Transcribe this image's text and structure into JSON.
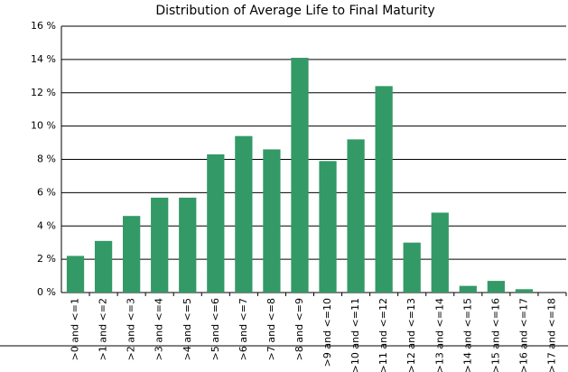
{
  "chart_data": {
    "type": "bar",
    "title": "Distribution of Average Life to Final Maturity",
    "categories": [
      ">0 and <=1",
      ">1 and <=2",
      ">2 and <=3",
      ">3 and <=4",
      ">4 and <=5",
      ">5 and <=6",
      ">6 and <=7",
      ">7 and <=8",
      ">8 and <=9",
      ">9 and <=10",
      ">10 and <=11",
      ">11 and <=12",
      ">12 and <=13",
      ">13 and <=14",
      ">14 and <=15",
      ">15 and <=16",
      ">16 and <=17",
      ">17 and <=18"
    ],
    "values": [
      2.2,
      3.1,
      4.6,
      5.7,
      5.7,
      8.3,
      9.4,
      8.6,
      14.1,
      7.9,
      9.2,
      12.4,
      3.0,
      4.8,
      0.4,
      0.7,
      0.2,
      0
    ],
    "color": "#339966",
    "ylim": [
      0,
      16
    ],
    "yticks": [
      {
        "value": 0,
        "label": "0 %"
      },
      {
        "value": 2,
        "label": "2 %"
      },
      {
        "value": 4,
        "label": "4 %"
      },
      {
        "value": 6,
        "label": "6 %"
      },
      {
        "value": 8,
        "label": "8 %"
      },
      {
        "value": 10,
        "label": "10 %"
      },
      {
        "value": 12,
        "label": "12 %"
      },
      {
        "value": 14,
        "label": "14 %"
      },
      {
        "value": 16,
        "label": "16 %"
      }
    ],
    "grid": true
  }
}
